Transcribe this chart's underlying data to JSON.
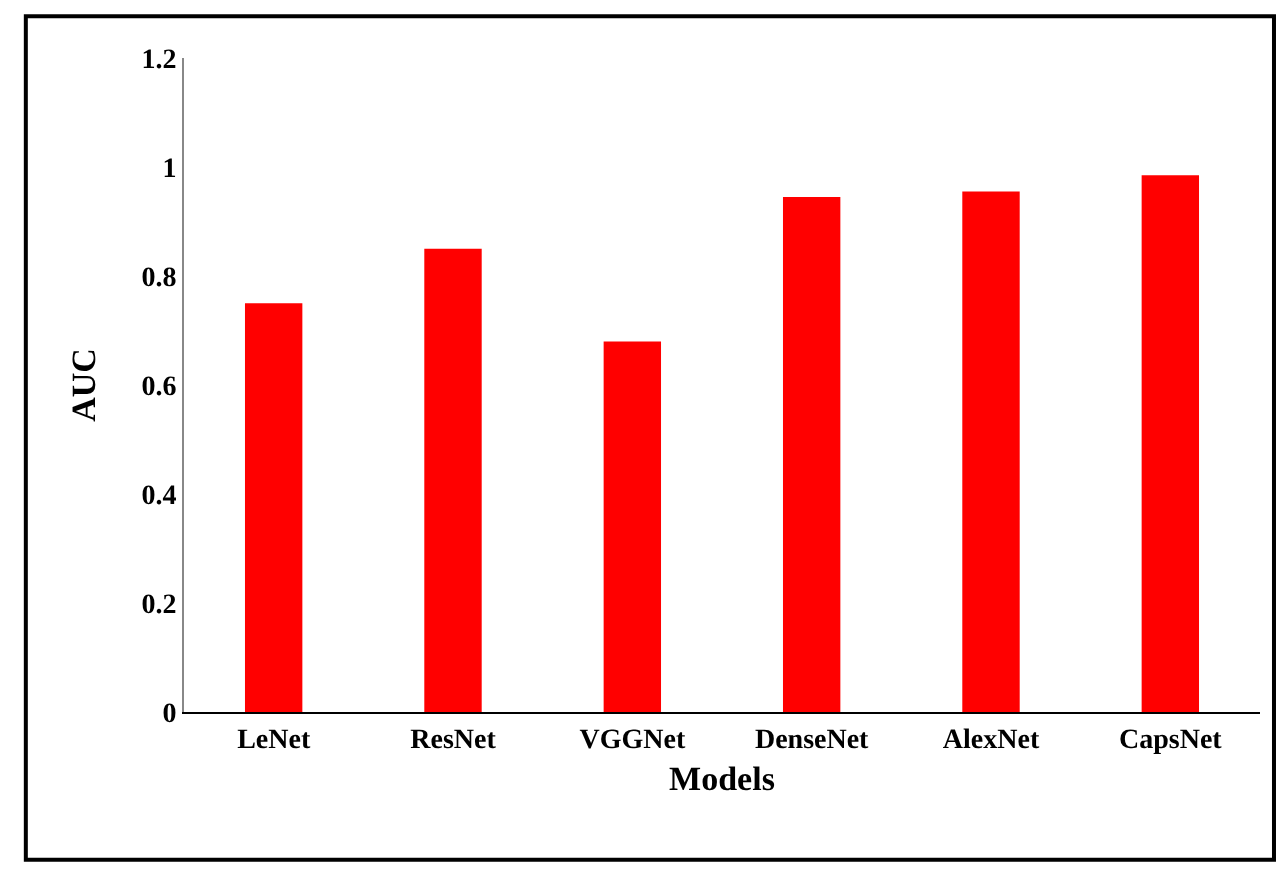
{
  "chart_data": {
    "type": "bar",
    "xlabel": "Models",
    "ylabel": "AUC",
    "categories": [
      "LeNet",
      "ResNet",
      "VGGNet",
      "DenseNet",
      "AlexNet",
      "CapsNet"
    ],
    "values": [
      0.75,
      0.85,
      0.68,
      0.945,
      0.955,
      0.985
    ],
    "color": "#ff0000",
    "ylim": [
      0,
      1.2
    ],
    "yticks": [
      {
        "value": 0,
        "label": "0"
      },
      {
        "value": 0.2,
        "label": "0.2"
      },
      {
        "value": 0.4,
        "label": "0.4"
      },
      {
        "value": 0.6,
        "label": "0.6"
      },
      {
        "value": 0.8,
        "label": "0.8"
      },
      {
        "value": 1,
        "label": "1"
      },
      {
        "value": 1.2,
        "label": "1.2"
      }
    ],
    "data_labels": false
  }
}
